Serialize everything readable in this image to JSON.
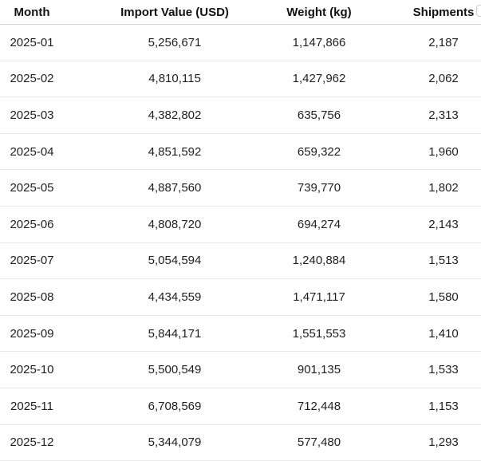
{
  "table": {
    "columns": [
      {
        "label": "Month"
      },
      {
        "label": "Import Value (USD)"
      },
      {
        "label": "Weight (kg)"
      },
      {
        "label": "Shipments"
      }
    ],
    "rows": [
      {
        "month": "2025-01",
        "import_value": "5,256,671",
        "weight": "1,147,866",
        "shipments": "2,187"
      },
      {
        "month": "2025-02",
        "import_value": "4,810,115",
        "weight": "1,427,962",
        "shipments": "2,062"
      },
      {
        "month": "2025-03",
        "import_value": "4,382,802",
        "weight": "635,756",
        "shipments": "2,313"
      },
      {
        "month": "2025-04",
        "import_value": "4,851,592",
        "weight": "659,322",
        "shipments": "1,960"
      },
      {
        "month": "2025-05",
        "import_value": "4,887,560",
        "weight": "739,770",
        "shipments": "1,802"
      },
      {
        "month": "2025-06",
        "import_value": "4,808,720",
        "weight": "694,274",
        "shipments": "2,143"
      },
      {
        "month": "2025-07",
        "import_value": "5,054,594",
        "weight": "1,240,884",
        "shipments": "1,513"
      },
      {
        "month": "2025-08",
        "import_value": "4,434,559",
        "weight": "1,471,117",
        "shipments": "1,580"
      },
      {
        "month": "2025-09",
        "import_value": "5,844,171",
        "weight": "1,551,553",
        "shipments": "1,410"
      },
      {
        "month": "2025-10",
        "import_value": "5,500,549",
        "weight": "901,135",
        "shipments": "1,533"
      },
      {
        "month": "2025-11",
        "import_value": "6,708,569",
        "weight": "712,448",
        "shipments": "1,153"
      },
      {
        "month": "2025-12",
        "import_value": "5,344,079",
        "weight": "577,480",
        "shipments": "1,293"
      }
    ]
  },
  "colors": {
    "background": "#ffffff",
    "header_text": "#121212",
    "cell_text": "#1f1f1f",
    "header_border": "#d4d4d4",
    "row_border": "#e9e9e9",
    "pill_border": "#cfcfcf"
  }
}
